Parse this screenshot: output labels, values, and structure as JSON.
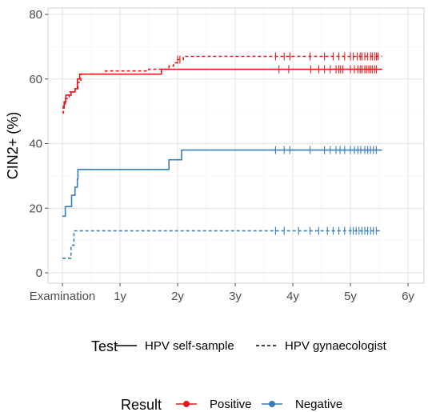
{
  "chart_data": {
    "type": "line",
    "title": "",
    "xlabel": "",
    "ylabel": "CIN2+ (%)",
    "x_unit": "years",
    "xlim": [
      0,
      6
    ],
    "ylim": [
      0,
      80
    ],
    "grid": true,
    "x_ticks": [
      {
        "value": 0,
        "label": "Examination"
      },
      {
        "value": 1,
        "label": "1y"
      },
      {
        "value": 2,
        "label": "2y"
      },
      {
        "value": 3,
        "label": "3y"
      },
      {
        "value": 4,
        "label": "4y"
      },
      {
        "value": 5,
        "label": "5y"
      },
      {
        "value": 6,
        "label": "6y"
      }
    ],
    "y_ticks": [
      0,
      20,
      40,
      60,
      80
    ],
    "colors": {
      "Positive": "#e41a1c",
      "Negative": "#377eb8"
    },
    "legend": {
      "test": {
        "title": "Test",
        "entries": [
          {
            "label": "HPV self-sample",
            "linetype": "solid"
          },
          {
            "label": "HPV gynaecologist",
            "linetype": "dashed"
          }
        ]
      },
      "result": {
        "title": "Result",
        "entries": [
          {
            "label": "Positive",
            "color": "#e41a1c"
          },
          {
            "label": "Negative",
            "color": "#377eb8"
          }
        ]
      },
      "placement": "bottom"
    },
    "series": [
      {
        "test": "HPV self-sample",
        "result": "Positive",
        "linetype": "solid",
        "steps": [
          [
            0,
            51
          ],
          [
            0.03,
            53
          ],
          [
            0.06,
            55
          ],
          [
            0.15,
            56
          ],
          [
            0.22,
            57
          ],
          [
            0.26,
            60
          ],
          [
            0.3,
            61.5
          ],
          [
            1.72,
            63
          ],
          [
            5.55,
            63
          ]
        ],
        "censored": [
          3.76,
          3.93,
          4.31,
          4.45,
          4.55,
          4.65,
          4.75,
          4.8,
          4.83,
          4.87,
          5.0,
          5.07,
          5.13,
          5.17,
          5.2,
          5.25,
          5.28,
          5.32,
          5.35,
          5.38,
          5.42,
          5.45
        ]
      },
      {
        "test": "HPV gynaecologist",
        "result": "Positive",
        "linetype": "dashed",
        "steps": [
          [
            0,
            49.5
          ],
          [
            0.02,
            52
          ],
          [
            0.05,
            54
          ],
          [
            0.12,
            56
          ],
          [
            0.22,
            57
          ],
          [
            0.27,
            59
          ],
          [
            0.32,
            61.5
          ],
          [
            0.75,
            62.5
          ],
          [
            1.5,
            63
          ],
          [
            1.85,
            64
          ],
          [
            1.93,
            65
          ],
          [
            2.0,
            66
          ],
          [
            2.1,
            67
          ],
          [
            5.55,
            67
          ]
        ],
        "censored": [
          2.0,
          2.04,
          3.7,
          3.85,
          3.95,
          4.3,
          4.55,
          4.7,
          4.8,
          4.9,
          5.0,
          5.05,
          5.12,
          5.17,
          5.2,
          5.25,
          5.3,
          5.35,
          5.38,
          5.42,
          5.45,
          5.48
        ]
      },
      {
        "test": "HPV self-sample",
        "result": "Negative",
        "linetype": "solid",
        "steps": [
          [
            0,
            17.5
          ],
          [
            0.05,
            20.5
          ],
          [
            0.16,
            24
          ],
          [
            0.22,
            26.5
          ],
          [
            0.26,
            29
          ],
          [
            0.27,
            32
          ],
          [
            1.85,
            35
          ],
          [
            2.07,
            38
          ],
          [
            5.55,
            38
          ]
        ],
        "censored": [
          3.7,
          3.85,
          3.95,
          4.3,
          4.55,
          4.65,
          4.75,
          4.82,
          4.9,
          5.0,
          5.07,
          5.13,
          5.18,
          5.25,
          5.3,
          5.35,
          5.4,
          5.45
        ]
      },
      {
        "test": "HPV gynaecologist",
        "result": "Negative",
        "linetype": "dashed",
        "steps": [
          [
            0,
            4.5
          ],
          [
            0.15,
            8.5
          ],
          [
            0.2,
            13
          ],
          [
            5.55,
            13
          ]
        ],
        "censored": [
          3.7,
          3.85,
          4.1,
          4.3,
          4.45,
          4.6,
          4.7,
          4.8,
          4.9,
          5.0,
          5.05,
          5.1,
          5.15,
          5.2,
          5.25,
          5.3,
          5.35,
          5.4,
          5.45
        ]
      }
    ]
  }
}
